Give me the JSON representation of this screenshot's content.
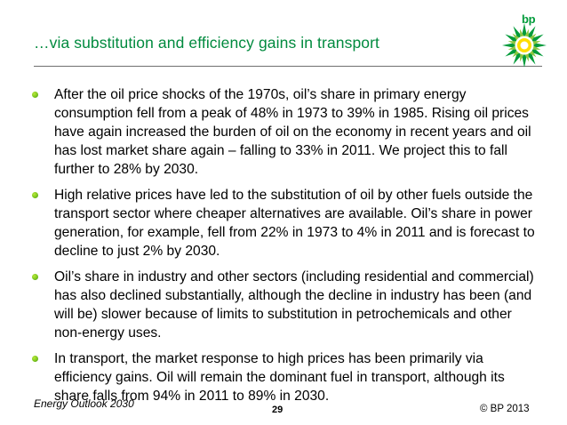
{
  "slide": {
    "title": "…via substitution and efficiency gains in transport"
  },
  "logo": {
    "text": "bp",
    "icon": "bp-helios-logo-icon",
    "colors": {
      "green": "#009b3a",
      "yellow": "#ffdd00",
      "white": "#ffffff"
    }
  },
  "bullets": [
    {
      "text": "After the oil price shocks of the 1970s, oil’s share in primary energy consumption fell from a peak of 48% in 1973 to 39% in 1985. Rising oil prices have again increased the burden of oil on the economy in recent years and oil has lost market share again – falling to 33% in 2011. We project this to fall further to 28% by 2030."
    },
    {
      "text": "High relative prices have led to the substitution of oil by other fuels outside the transport sector where cheaper alternatives are available. Oil’s share in power generation, for example, fell from 22% in 1973 to 4% in 2011 and is forecast to decline to just 2% by 2030."
    },
    {
      "text": "Oil’s share in industry and other sectors (including residential and commercial) has also declined substantially, although the decline in industry has been (and will be) slower because of limits to substitution in petrochemicals and other non-energy uses."
    },
    {
      "text": "In transport, the market response to high prices has been primarily via efficiency gains. Oil will remain the dominant fuel in transport, although its share falls from 94% in 2011 to 89% in 2030."
    }
  ],
  "footer": {
    "left": "Energy Outlook 2030",
    "page": "29",
    "right": "© BP 2013"
  },
  "colors": {
    "title": "#008a3e",
    "bullet": "#7cc61e",
    "rule": "#6f6f6f"
  }
}
